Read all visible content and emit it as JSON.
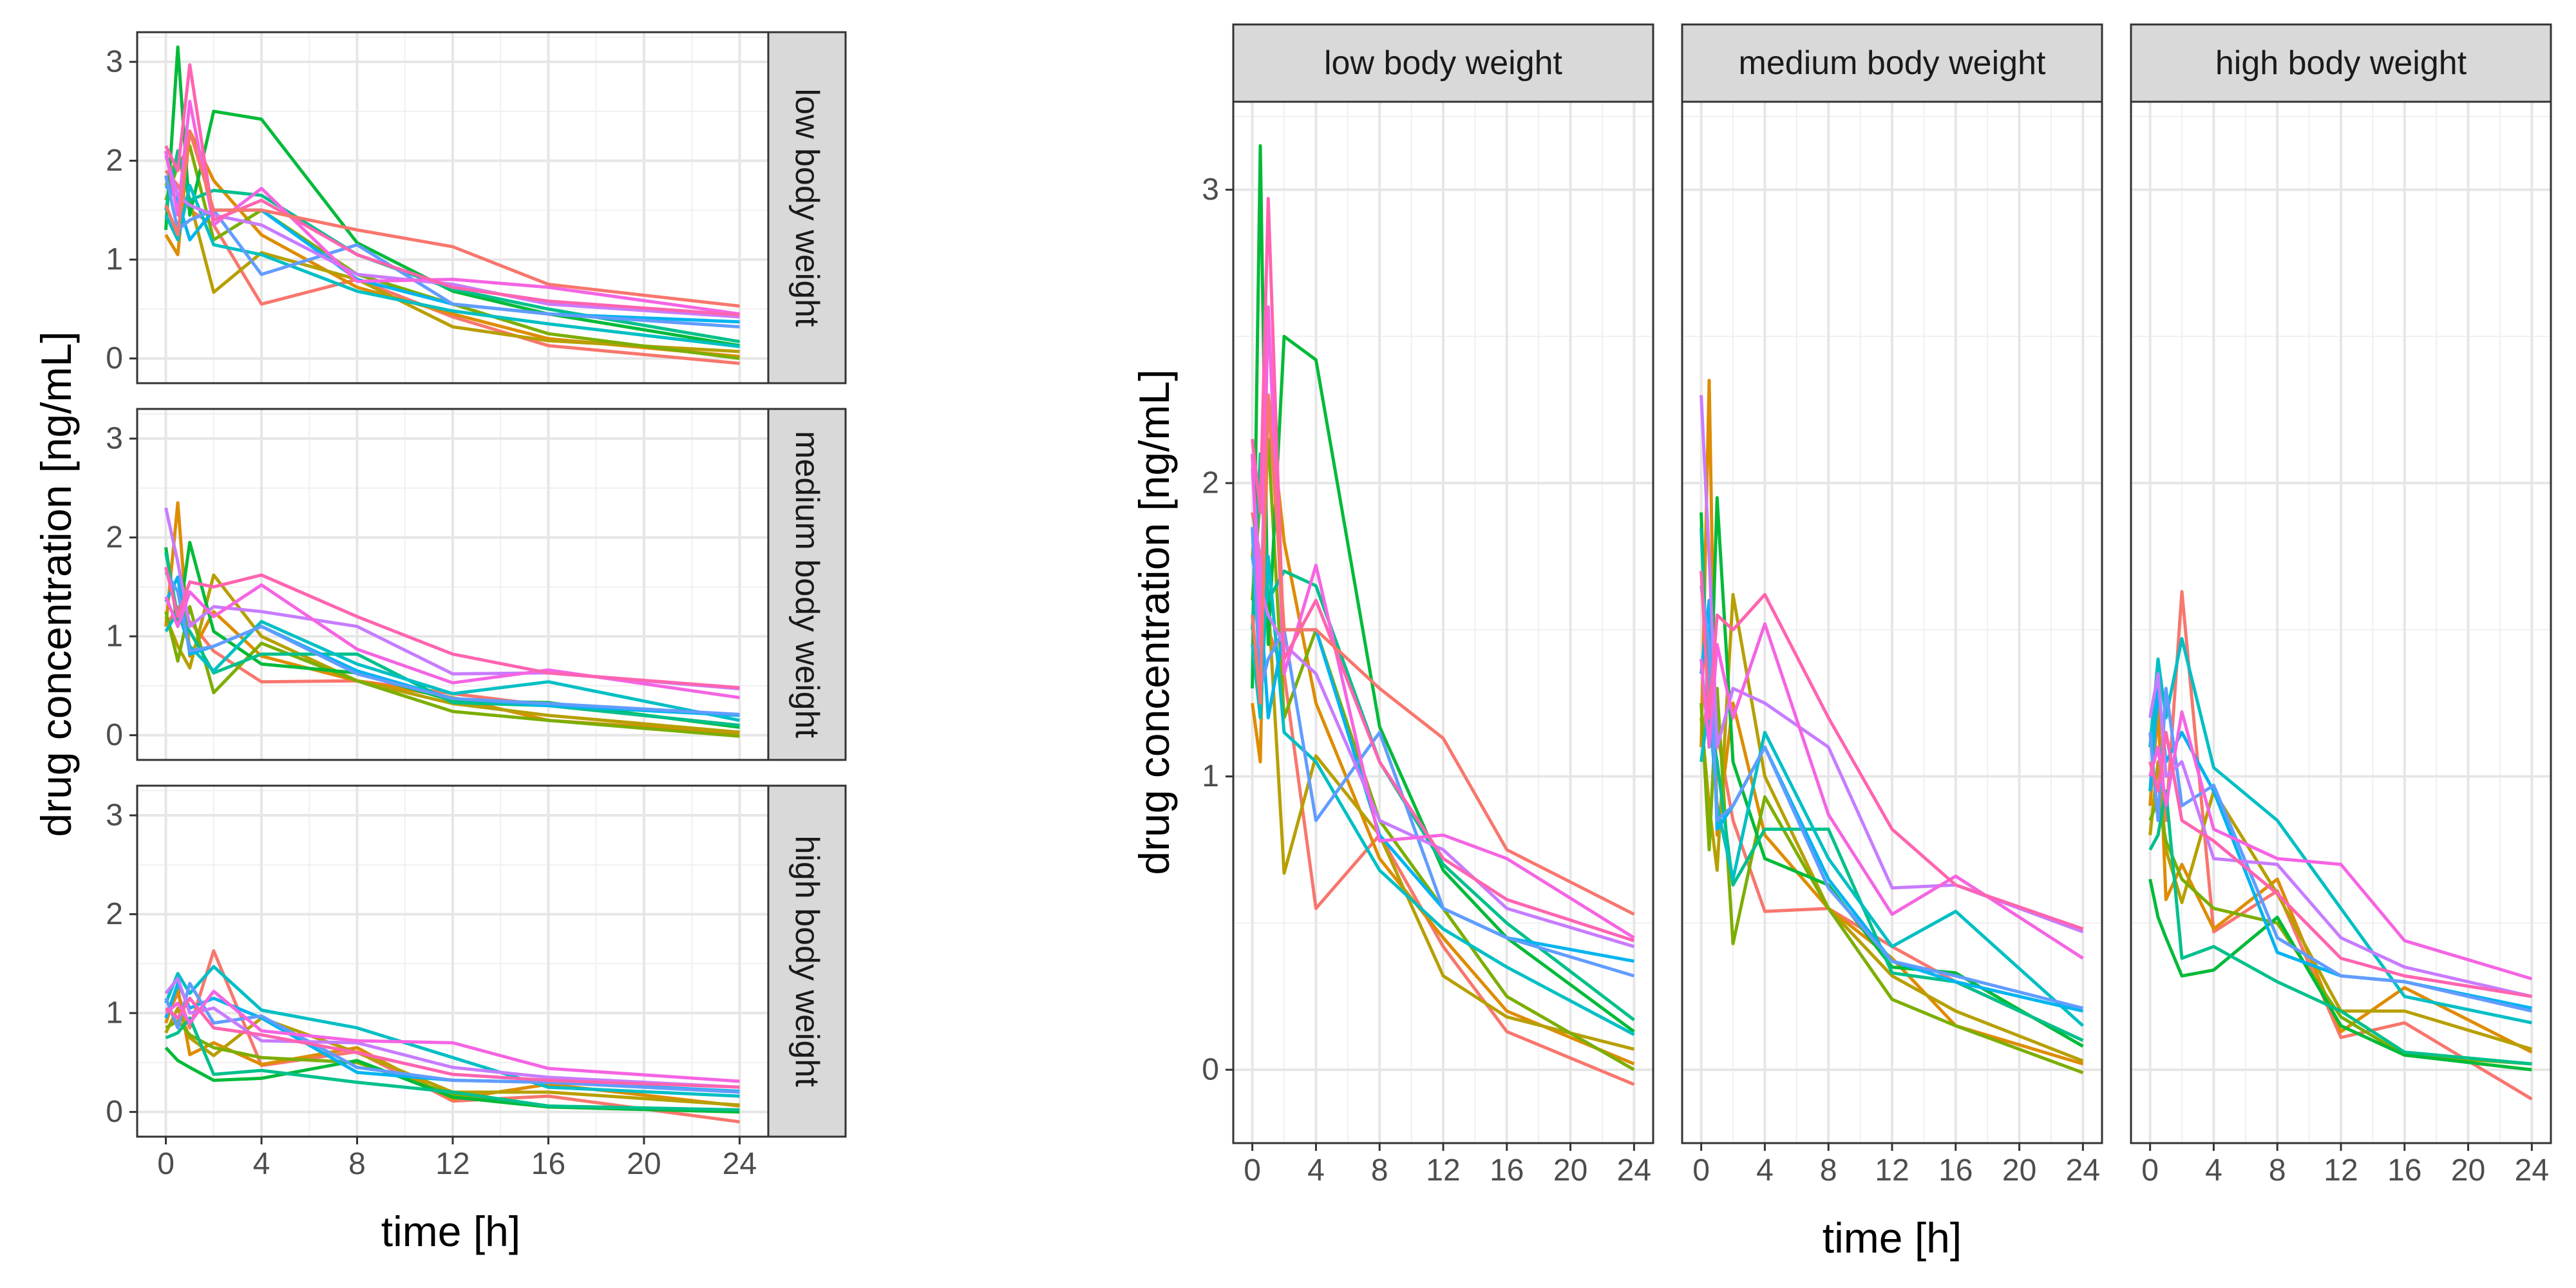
{
  "chart_data": [
    {
      "type": "line",
      "layout": "facet-rows",
      "xlabel": "time [h]",
      "ylabel": "drug concentration [ng/mL]",
      "xticks": [
        0,
        4,
        8,
        12,
        16,
        20,
        24
      ],
      "yticks": [
        0,
        1,
        2,
        3
      ],
      "xlim": [
        -1.2,
        25.2
      ],
      "ylim": [
        -0.25,
        3.3
      ],
      "grid": true,
      "legend": "none",
      "panels": [
        {
          "label": "low body weight",
          "series_ref": "low"
        },
        {
          "label": "medium body weight",
          "series_ref": "medium"
        },
        {
          "label": "high body weight",
          "series_ref": "high"
        }
      ]
    },
    {
      "type": "line",
      "layout": "facet-columns",
      "xlabel": "time [h]",
      "ylabel": "drug concentration [ng/mL]",
      "xticks": [
        0,
        4,
        8,
        12,
        16,
        20,
        24
      ],
      "yticks": [
        0,
        1,
        2,
        3
      ],
      "xlim": [
        -1.2,
        25.2
      ],
      "ylim": [
        -0.25,
        3.3
      ],
      "grid": true,
      "legend": "none",
      "panels": [
        {
          "label": "low body weight",
          "series_ref": "low"
        },
        {
          "label": "medium body weight",
          "series_ref": "medium"
        },
        {
          "label": "high body weight",
          "series_ref": "high"
        }
      ]
    }
  ],
  "times": [
    0,
    0.5,
    1,
    2,
    4,
    8,
    12,
    16,
    24
  ],
  "groups": {
    "low": [
      {
        "color": "#F8766D",
        "values": [
          1.9,
          1.75,
          1.5,
          1.35,
          0.55,
          0.8,
          0.42,
          0.13,
          -0.05
        ]
      },
      {
        "color": "#DE8C00",
        "values": [
          1.25,
          1.05,
          2.3,
          1.8,
          1.25,
          0.72,
          0.45,
          0.2,
          0.02
        ]
      },
      {
        "color": "#B79F00",
        "values": [
          1.75,
          2.05,
          1.6,
          0.67,
          1.07,
          0.8,
          0.32,
          0.18,
          0.07
        ]
      },
      {
        "color": "#7CAE00",
        "values": [
          1.6,
          1.95,
          2.15,
          1.2,
          1.5,
          0.85,
          0.55,
          0.25,
          0.0
        ]
      },
      {
        "color": "#00BA38",
        "values": [
          1.3,
          3.15,
          1.45,
          2.5,
          2.42,
          1.17,
          0.68,
          0.45,
          0.13
        ]
      },
      {
        "color": "#00C08B",
        "values": [
          1.5,
          2.1,
          1.6,
          1.7,
          1.65,
          1.05,
          0.7,
          0.5,
          0.17
        ]
      },
      {
        "color": "#00BFC4",
        "values": [
          1.45,
          1.2,
          1.75,
          1.15,
          1.05,
          0.68,
          0.48,
          0.35,
          0.12
        ]
      },
      {
        "color": "#00B4F0",
        "values": [
          1.75,
          1.6,
          1.2,
          1.5,
          1.5,
          0.8,
          0.55,
          0.45,
          0.37
        ]
      },
      {
        "color": "#619CFF",
        "values": [
          1.85,
          1.3,
          1.4,
          1.5,
          0.85,
          1.15,
          0.55,
          0.45,
          0.32
        ]
      },
      {
        "color": "#C77CFF",
        "values": [
          2.05,
          1.65,
          1.55,
          1.45,
          1.35,
          0.85,
          0.75,
          0.55,
          0.42
        ]
      },
      {
        "color": "#F564E3",
        "values": [
          2.1,
          1.45,
          2.6,
          1.35,
          1.72,
          0.78,
          0.8,
          0.72,
          0.45
        ]
      },
      {
        "color": "#FF64B0",
        "values": [
          2.15,
          1.9,
          2.97,
          1.4,
          1.6,
          1.05,
          0.72,
          0.58,
          0.44
        ]
      },
      {
        "color": "#F8766D",
        "values": [
          1.55,
          1.25,
          2.3,
          1.5,
          1.5,
          1.3,
          1.13,
          0.75,
          0.53
        ]
      }
    ],
    "medium": [
      {
        "color": "#F8766D",
        "values": [
          1.1,
          1.3,
          1.15,
          0.85,
          0.54,
          0.55,
          0.42,
          0.3,
          0.1
        ]
      },
      {
        "color": "#DE8C00",
        "values": [
          1.1,
          2.35,
          0.8,
          1.25,
          0.8,
          0.55,
          0.38,
          0.15,
          0.02
        ]
      },
      {
        "color": "#B79F00",
        "values": [
          1.2,
          0.9,
          0.68,
          1.62,
          1.0,
          0.55,
          0.32,
          0.2,
          0.03
        ]
      },
      {
        "color": "#7CAE00",
        "values": [
          1.25,
          0.75,
          1.3,
          0.43,
          0.93,
          0.55,
          0.24,
          0.15,
          -0.01
        ]
      },
      {
        "color": "#00BA38",
        "values": [
          1.9,
          1.1,
          1.95,
          1.05,
          0.72,
          0.63,
          0.35,
          0.33,
          0.08
        ]
      },
      {
        "color": "#00C08B",
        "values": [
          1.85,
          1.2,
          1.05,
          0.63,
          0.82,
          0.82,
          0.33,
          0.3,
          0.1
        ]
      },
      {
        "color": "#00BFC4",
        "values": [
          1.05,
          1.25,
          0.9,
          0.65,
          1.15,
          0.72,
          0.42,
          0.54,
          0.15
        ]
      },
      {
        "color": "#00B4F0",
        "values": [
          1.35,
          1.6,
          0.82,
          0.9,
          1.1,
          0.65,
          0.37,
          0.3,
          0.2
        ]
      },
      {
        "color": "#619CFF",
        "values": [
          1.65,
          1.45,
          0.85,
          0.9,
          1.1,
          0.62,
          0.37,
          0.32,
          0.21
        ]
      },
      {
        "color": "#C77CFF",
        "values": [
          2.3,
          1.75,
          1.1,
          1.3,
          1.25,
          1.1,
          0.62,
          0.63,
          0.47
        ]
      },
      {
        "color": "#F564E3",
        "values": [
          1.4,
          1.1,
          1.45,
          1.2,
          1.52,
          0.87,
          0.53,
          0.66,
          0.38
        ]
      },
      {
        "color": "#FF64B0",
        "values": [
          1.7,
          1.2,
          1.55,
          1.5,
          1.62,
          1.2,
          0.82,
          0.63,
          0.48
        ]
      }
    ],
    "high": [
      {
        "color": "#F8766D",
        "values": [
          0.95,
          1.2,
          0.85,
          1.63,
          0.47,
          0.61,
          0.11,
          0.16,
          -0.1
        ]
      },
      {
        "color": "#DE8C00",
        "values": [
          0.9,
          1.25,
          0.58,
          0.7,
          0.48,
          0.65,
          0.13,
          0.28,
          0.06
        ]
      },
      {
        "color": "#B79F00",
        "values": [
          0.8,
          1.05,
          0.75,
          0.57,
          0.95,
          0.6,
          0.2,
          0.2,
          0.07
        ]
      },
      {
        "color": "#7CAE00",
        "values": [
          0.85,
          0.92,
          0.78,
          0.65,
          0.55,
          0.5,
          0.18,
          0.05,
          0.02
        ]
      },
      {
        "color": "#00BA38",
        "values": [
          0.65,
          0.52,
          0.45,
          0.32,
          0.34,
          0.52,
          0.15,
          0.05,
          0.0
        ]
      },
      {
        "color": "#00C08B",
        "values": [
          0.75,
          0.8,
          0.95,
          0.38,
          0.42,
          0.3,
          0.2,
          0.06,
          0.02
        ]
      },
      {
        "color": "#00BFC4",
        "values": [
          1.1,
          1.4,
          1.2,
          1.47,
          1.03,
          0.85,
          0.55,
          0.25,
          0.16
        ]
      },
      {
        "color": "#00B4F0",
        "values": [
          0.95,
          1.3,
          1.05,
          1.15,
          0.95,
          0.4,
          0.32,
          0.3,
          0.21
        ]
      },
      {
        "color": "#619CFF",
        "values": [
          1.15,
          0.85,
          1.3,
          0.9,
          0.97,
          0.45,
          0.32,
          0.3,
          0.2
        ]
      },
      {
        "color": "#C77CFF",
        "values": [
          1.2,
          1.35,
          1.0,
          1.05,
          0.72,
          0.7,
          0.45,
          0.35,
          0.25
        ]
      },
      {
        "color": "#F564E3",
        "values": [
          1.0,
          1.1,
          0.9,
          1.22,
          0.82,
          0.72,
          0.7,
          0.44,
          0.31
        ]
      },
      {
        "color": "#FF64B0",
        "values": [
          1.05,
          0.95,
          1.15,
          0.85,
          0.78,
          0.6,
          0.38,
          0.32,
          0.25
        ]
      }
    ]
  }
}
